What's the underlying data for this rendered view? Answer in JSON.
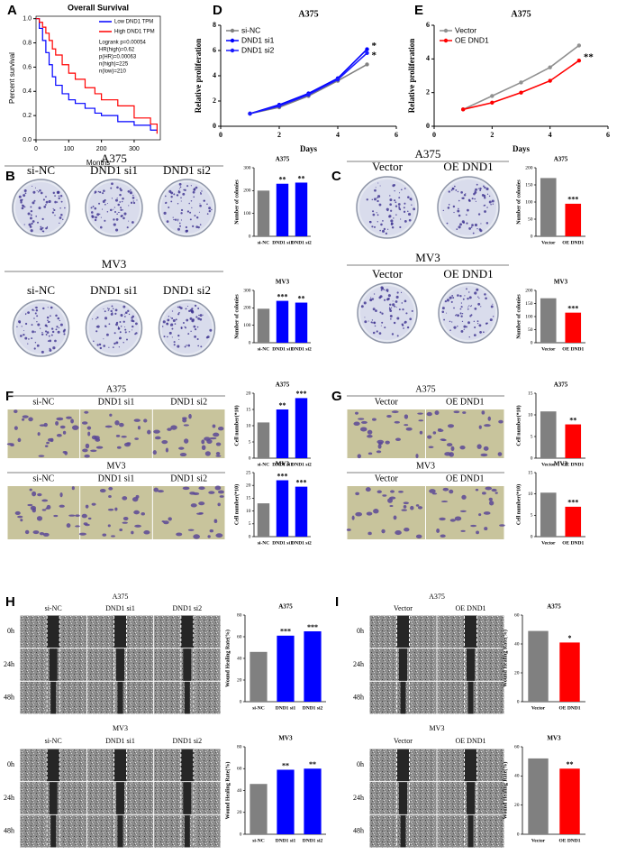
{
  "figure": {
    "panel_letters": [
      "A",
      "B",
      "C",
      "D",
      "E",
      "F",
      "G",
      "H",
      "I"
    ],
    "time_labels": [
      "0h",
      "24h",
      "48h"
    ],
    "image_groups": [
      {
        "title": "A375",
        "columns": [
          "si-NC",
          "DND1 si1",
          "DND1 si2"
        ]
      },
      {
        "title": "MV3",
        "columns": [
          "si-NC",
          "DND1 si1",
          "DND1 si2"
        ]
      },
      {
        "title": "A375",
        "columns": [
          "Vector",
          "OE DND1"
        ]
      },
      {
        "title": "MV3",
        "columns": [
          "Vector",
          "OE DND1"
        ]
      },
      {
        "title": "A375",
        "columns": [
          "si-NC",
          "DND1 si1",
          "DND1 si2"
        ]
      },
      {
        "title": "MV3",
        "columns": [
          "si-NC",
          "DND1 si1",
          "DND1 si2"
        ]
      },
      {
        "title": "A375",
        "columns": [
          "Vector",
          "OE DND1"
        ]
      },
      {
        "title": "MV3",
        "columns": [
          "Vector",
          "OE DND1"
        ]
      },
      {
        "title": "A375",
        "columns": [
          "si-NC",
          "DND1 si1",
          "DND1 si2"
        ]
      },
      {
        "title": "MV3",
        "columns": [
          "si-NC",
          "DND1 si1",
          "DND1 si2"
        ]
      },
      {
        "title": "A375",
        "columns": [
          "Vector",
          "OE DND1"
        ]
      },
      {
        "title": "MV3",
        "columns": [
          "Vector",
          "OE DND1"
        ]
      }
    ]
  },
  "chart_data": [
    {
      "type": "step",
      "title": "Overall Survival",
      "xlabel": "Months",
      "ylabel": "Percent survival",
      "series": [
        {
          "name": "Low DND1 TPM",
          "color": "#0000ff",
          "x": [
            0,
            10,
            20,
            30,
            40,
            50,
            60,
            80,
            100,
            120,
            150,
            180,
            200,
            250,
            300,
            350,
            370
          ],
          "values": [
            1,
            0.92,
            0.82,
            0.72,
            0.62,
            0.52,
            0.45,
            0.38,
            0.33,
            0.3,
            0.26,
            0.22,
            0.2,
            0.15,
            0.12,
            0.08,
            0.08
          ]
        },
        {
          "name": "High DND1 TPM",
          "color": "#ff0000",
          "x": [
            0,
            10,
            20,
            30,
            40,
            50,
            60,
            80,
            100,
            120,
            150,
            180,
            200,
            250,
            300,
            350,
            370
          ],
          "values": [
            1,
            0.97,
            0.93,
            0.88,
            0.82,
            0.75,
            0.7,
            0.62,
            0.55,
            0.5,
            0.43,
            0.38,
            0.33,
            0.28,
            0.18,
            0.13,
            0.05
          ]
        }
      ],
      "annotations": [
        "Logrank p=0.00054",
        "HR(high)=0.62",
        "p(HR)=0.00063",
        "n(high)=225",
        "n(low)=210"
      ],
      "xlim": [
        0,
        380
      ],
      "ylim": [
        0,
        1.02
      ],
      "xticks": [
        0,
        100,
        200,
        300
      ],
      "yticks": [
        {
          "value": 0,
          "label": "0.0"
        },
        0.2,
        0.4,
        0.6,
        0.8,
        {
          "value": 1,
          "label": "1.0"
        }
      ],
      "legend": "upper-right"
    },
    {
      "type": "line",
      "title": "A375",
      "xlabel": "Days",
      "ylabel": "Relative proliferation",
      "x": [
        1,
        2,
        3,
        4,
        5
      ],
      "series": [
        {
          "name": "si-NC",
          "color": "#808080",
          "values": [
            1.0,
            1.5,
            2.4,
            3.6,
            4.9
          ]
        },
        {
          "name": "DND1 si1",
          "color": "#0000ff",
          "values": [
            1.0,
            1.7,
            2.6,
            3.8,
            6.1
          ]
        },
        {
          "name": "DND1 si2",
          "color": "#1a1aff",
          "values": [
            1.0,
            1.6,
            2.5,
            3.7,
            5.8
          ]
        }
      ],
      "annotations": [
        "*",
        "*"
      ],
      "xlim": [
        0,
        6
      ],
      "ylim": [
        0,
        8
      ],
      "xticks": [
        0,
        2,
        4,
        6
      ],
      "yticks": [
        0,
        2,
        4,
        6,
        8
      ],
      "legend": "upper-left"
    },
    {
      "type": "line",
      "title": "A375",
      "xlabel": "Days",
      "ylabel": "Relative proliferation",
      "x": [
        1,
        2,
        3,
        4,
        5
      ],
      "series": [
        {
          "name": "Vector",
          "color": "#909090",
          "values": [
            1.0,
            1.8,
            2.6,
            3.5,
            4.8
          ]
        },
        {
          "name": "OE DND1",
          "color": "#ff0000",
          "values": [
            1.0,
            1.4,
            2.0,
            2.7,
            3.9
          ]
        }
      ],
      "annotations": [
        "**"
      ],
      "xlim": [
        0,
        6
      ],
      "ylim": [
        0,
        6
      ],
      "xticks": [
        0,
        2,
        4,
        6
      ],
      "yticks": [
        0,
        2,
        4,
        6
      ],
      "legend": "upper-left"
    },
    {
      "type": "bar",
      "title": "A375",
      "ylabel": "Number of colonies",
      "categories": [
        "si-NC",
        "DND1 si1",
        "DND1 si2"
      ],
      "values": [
        200,
        230,
        235
      ],
      "colors": [
        "#808080",
        "#0000ff",
        "#0000ff"
      ],
      "significance": [
        null,
        "**",
        "**"
      ],
      "ylim": [
        0,
        300
      ],
      "yticks": [
        0,
        100,
        200,
        300
      ]
    },
    {
      "type": "bar",
      "title": "MV3",
      "ylabel": "Number of colonies",
      "categories": [
        "si-NC",
        "DND1 si1",
        "DND1 si2"
      ],
      "values": [
        195,
        240,
        230
      ],
      "colors": [
        "#808080",
        "#0000ff",
        "#0000ff"
      ],
      "significance": [
        null,
        "***",
        "**"
      ],
      "ylim": [
        0,
        300
      ],
      "yticks": [
        0,
        100,
        200,
        300
      ]
    },
    {
      "type": "bar",
      "title": "A375",
      "ylabel": "Number of colonies",
      "categories": [
        "Vector",
        "OE DND1"
      ],
      "values": [
        170,
        95
      ],
      "colors": [
        "#808080",
        "#ff0000"
      ],
      "significance": [
        null,
        "***"
      ],
      "ylim": [
        0,
        200
      ],
      "yticks": [
        0,
        50,
        100,
        150,
        200
      ]
    },
    {
      "type": "bar",
      "title": "MV3",
      "ylabel": "Number of colonies",
      "categories": [
        "Vector",
        "OE DND1"
      ],
      "values": [
        170,
        115
      ],
      "colors": [
        "#808080",
        "#ff0000"
      ],
      "significance": [
        null,
        "***"
      ],
      "ylim": [
        0,
        200
      ],
      "yticks": [
        0,
        50,
        100,
        150,
        200
      ]
    },
    {
      "type": "bar",
      "title": "A375",
      "ylabel": "Cell number(*10)",
      "categories": [
        "si-NC",
        "DND1 si1",
        "DND1 si2"
      ],
      "values": [
        11,
        15,
        18.5
      ],
      "colors": [
        "#808080",
        "#0000ff",
        "#0000ff"
      ],
      "significance": [
        null,
        "**",
        "***"
      ],
      "ylim": [
        0,
        20
      ],
      "yticks": [
        0,
        5,
        10,
        15,
        20
      ]
    },
    {
      "type": "bar",
      "title": "MV3",
      "ylabel": "Cell number(*10)",
      "categories": [
        "si-NC",
        "DND1 si1",
        "DND1 si2"
      ],
      "values": [
        13,
        22,
        19.5
      ],
      "colors": [
        "#808080",
        "#0000ff",
        "#0000ff"
      ],
      "significance": [
        null,
        "***",
        "***"
      ],
      "ylim": [
        0,
        25
      ],
      "yticks": [
        0,
        5,
        10,
        15,
        20,
        25
      ]
    },
    {
      "type": "bar",
      "title": "A375",
      "ylabel": "Cell number(*10)",
      "categories": [
        "Vector",
        "OE DND1"
      ],
      "values": [
        10.8,
        7.8
      ],
      "colors": [
        "#808080",
        "#ff0000"
      ],
      "significance": [
        null,
        "**"
      ],
      "ylim": [
        0,
        15
      ],
      "yticks": [
        0,
        5,
        10,
        15
      ]
    },
    {
      "type": "bar",
      "title": "MV3",
      "ylabel": "Cell number(*10)",
      "categories": [
        "Vector",
        "OE DND1"
      ],
      "values": [
        10.3,
        7.0
      ],
      "colors": [
        "#808080",
        "#ff0000"
      ],
      "significance": [
        null,
        "***"
      ],
      "ylim": [
        0,
        15
      ],
      "yticks": [
        0,
        5,
        10,
        15
      ]
    },
    {
      "type": "bar",
      "title": "A375",
      "ylabel": "Wound Healing Rate(%)",
      "categories": [
        "si-NC",
        "DND1 si1",
        "DND1 si2"
      ],
      "values": [
        46,
        61,
        65
      ],
      "colors": [
        "#808080",
        "#0000ff",
        "#0000ff"
      ],
      "significance": [
        null,
        "***",
        "***"
      ],
      "ylim": [
        0,
        80
      ],
      "yticks": [
        0,
        20,
        40,
        60,
        80
      ]
    },
    {
      "type": "bar",
      "title": "MV3",
      "ylabel": "Wound Healing Rate(%)",
      "categories": [
        "si-NC",
        "DND1 si1",
        "DND1 si2"
      ],
      "values": [
        46,
        59,
        60
      ],
      "colors": [
        "#808080",
        "#0000ff",
        "#0000ff"
      ],
      "significance": [
        null,
        "**",
        "**"
      ],
      "ylim": [
        0,
        80
      ],
      "yticks": [
        0,
        20,
        40,
        60,
        80
      ]
    },
    {
      "type": "bar",
      "title": "A375",
      "ylabel": "Wound Healing Rate(%)",
      "categories": [
        "Vector",
        "OE DND1"
      ],
      "values": [
        49,
        41
      ],
      "colors": [
        "#808080",
        "#ff0000"
      ],
      "significance": [
        null,
        "*"
      ],
      "ylim": [
        0,
        60
      ],
      "yticks": [
        0,
        20,
        40,
        60
      ]
    },
    {
      "type": "bar",
      "title": "MV3",
      "ylabel": "Wound Healing Rate(%)",
      "categories": [
        "Vector",
        "OE DND1"
      ],
      "values": [
        52,
        45
      ],
      "colors": [
        "#808080",
        "#ff0000"
      ],
      "significance": [
        null,
        "**"
      ],
      "ylim": [
        0,
        60
      ],
      "yticks": [
        0,
        20,
        40,
        60
      ]
    }
  ]
}
